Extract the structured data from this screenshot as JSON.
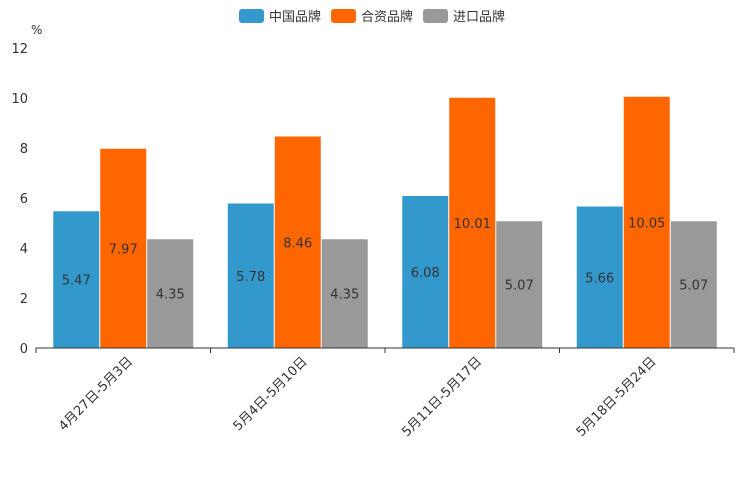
{
  "chart_data": {
    "type": "bar",
    "title": "",
    "unit": "%",
    "categories": [
      "4月27日-5月3日",
      "5月4日-5月10日",
      "5月11日-5月17日",
      "5月18日-5月24日"
    ],
    "series": [
      {
        "name": "中国品牌",
        "color": "#3399cc",
        "values": [
          5.47,
          5.78,
          6.08,
          5.66
        ]
      },
      {
        "name": "合资品牌",
        "color": "#ff6600",
        "values": [
          7.97,
          8.46,
          10.01,
          10.05
        ]
      },
      {
        "name": "进口品牌",
        "color": "#999999",
        "values": [
          4.35,
          4.35,
          5.07,
          5.07
        ]
      }
    ],
    "yticks": [
      0,
      2,
      4,
      6,
      8,
      10,
      12
    ],
    "ylim": [
      0,
      12
    ],
    "legend_position": "top-center",
    "grid": false
  }
}
